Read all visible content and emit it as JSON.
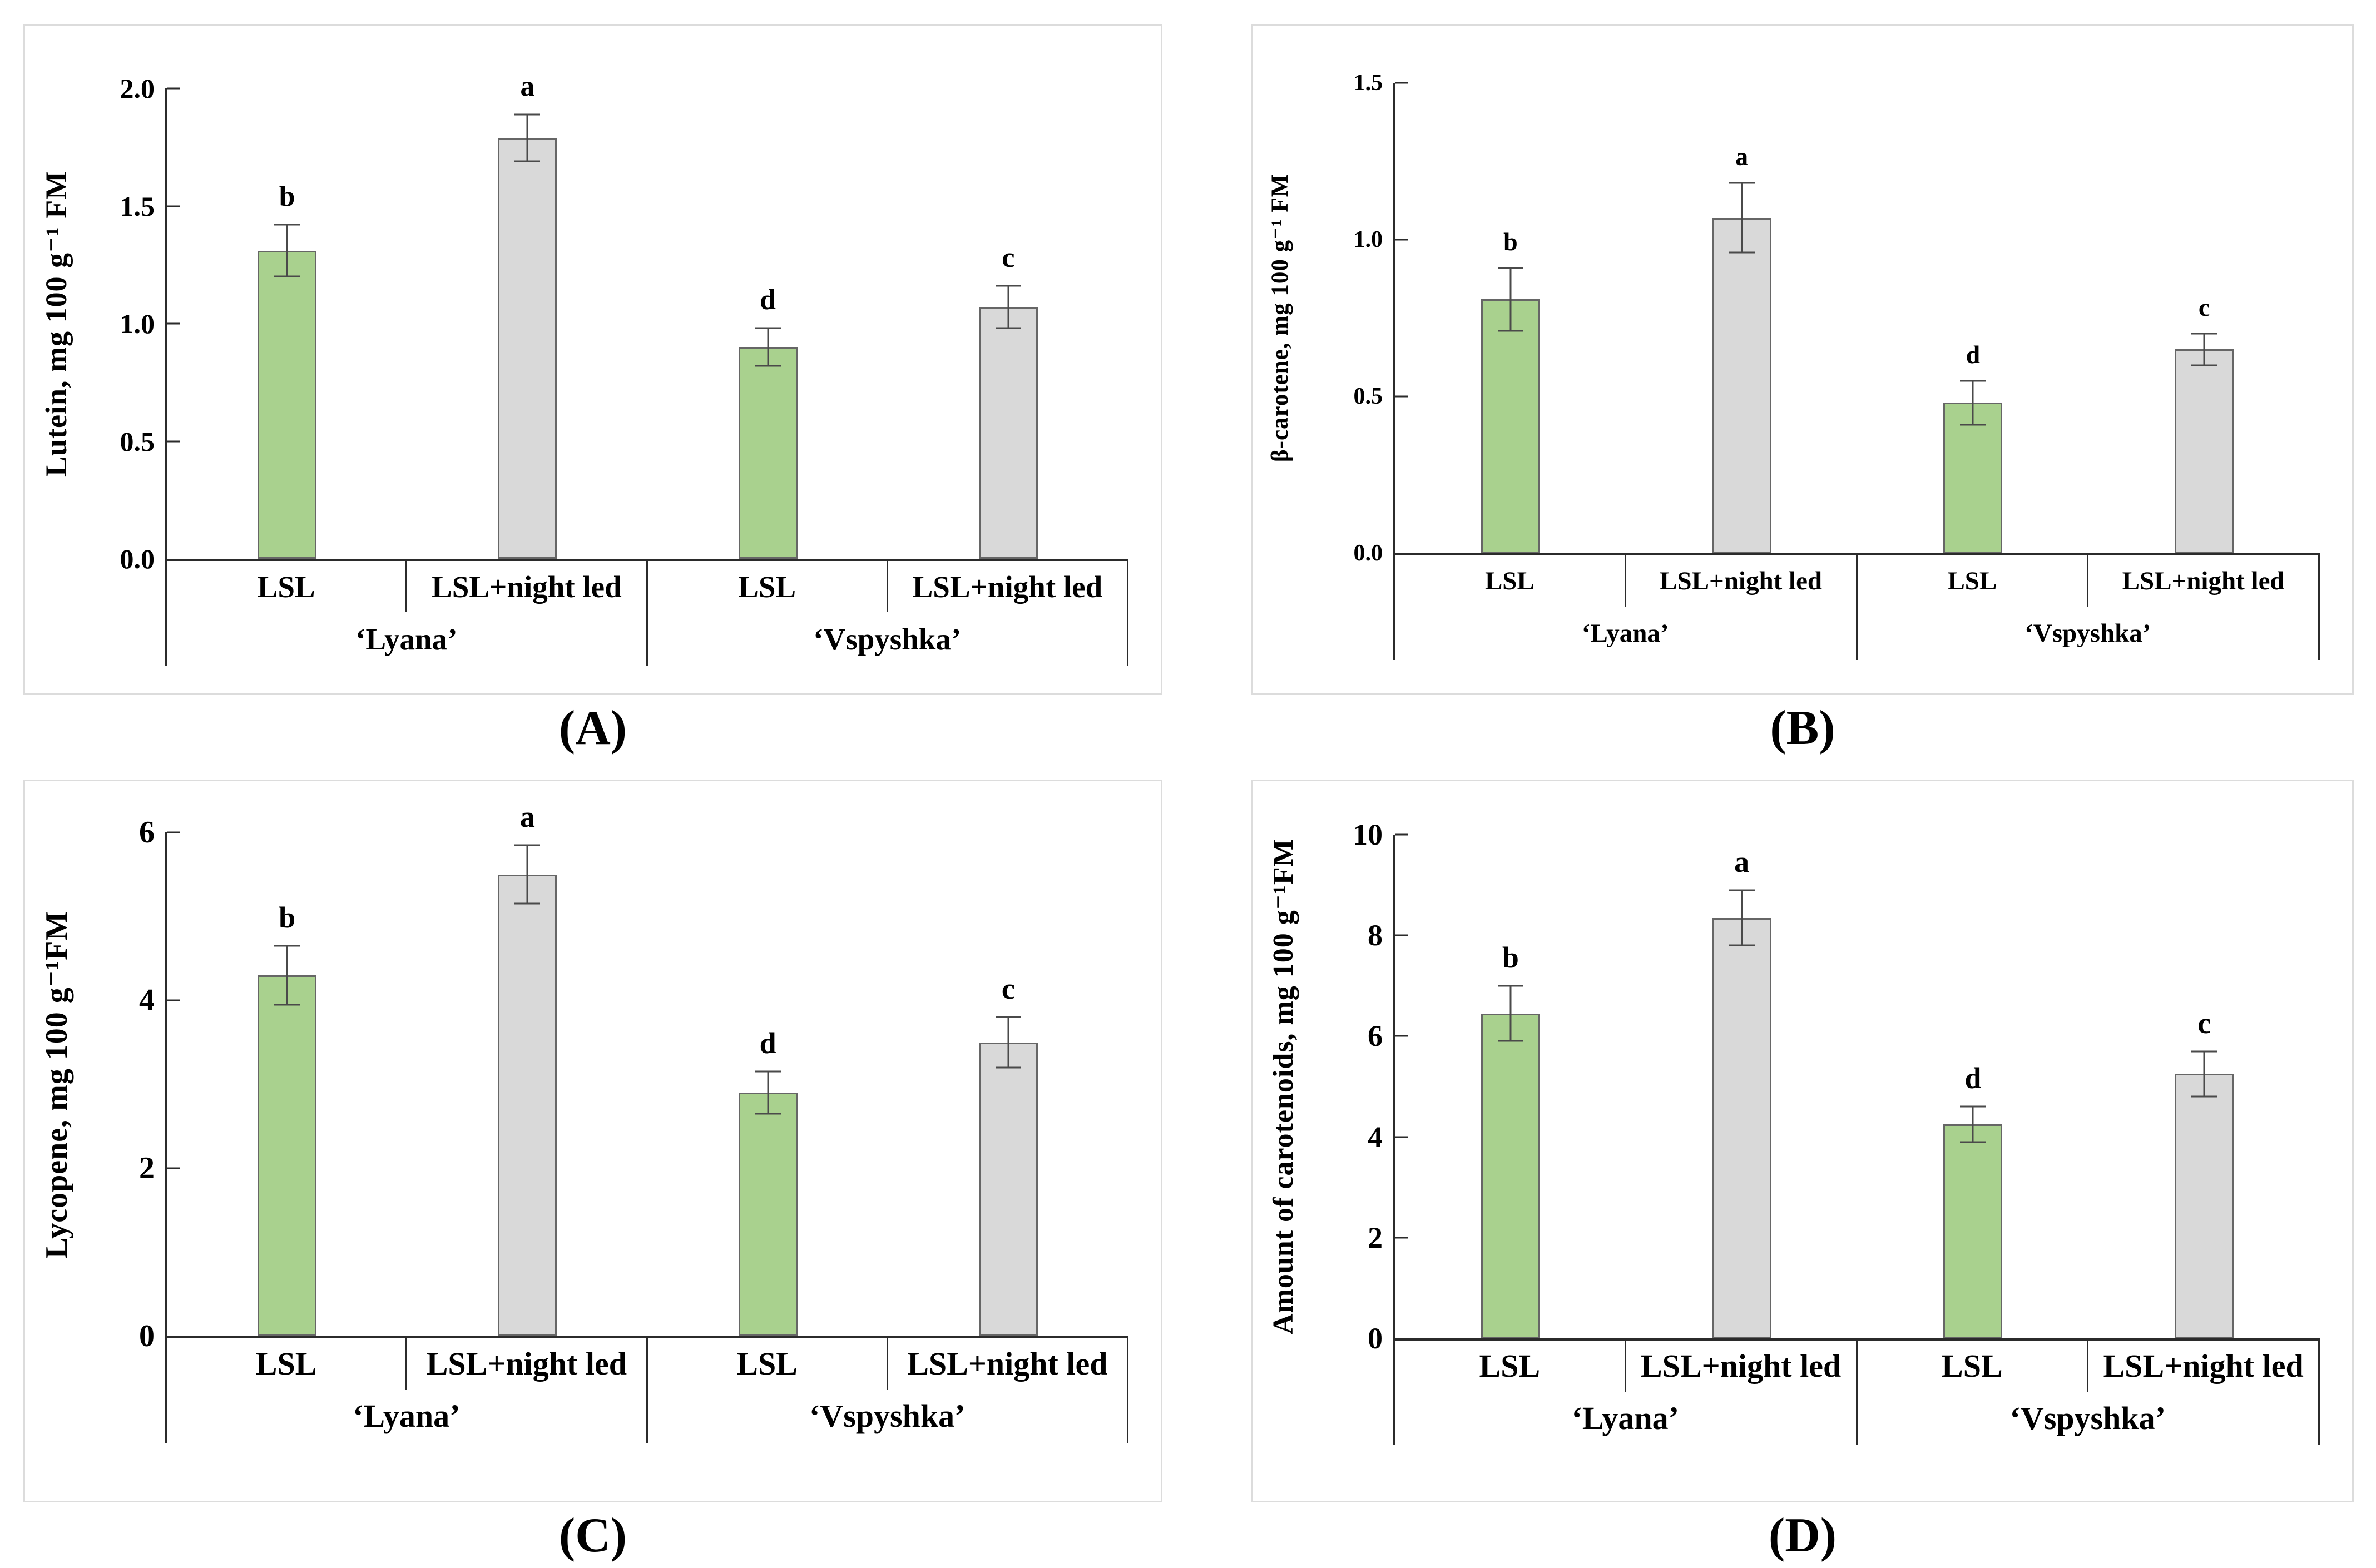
{
  "page": {
    "background": "#ffffff"
  },
  "colors": {
    "green_fill": "#a9d18e",
    "gray_fill": "#d9d9d9",
    "bar_border": "#666666",
    "error_bar": "#4a4a4a",
    "axis": "#2b2b2b",
    "panel_border": "#dcdcdc",
    "text": "#000000"
  },
  "chart_data": [
    {
      "id": "A",
      "type": "bar",
      "caption": "(A)",
      "ylabel": "Lutein, mg 100 g⁻¹ FM",
      "ylim": [
        0,
        2
      ],
      "grid": false,
      "yticks": [
        {
          "v": 0,
          "label": "0.0"
        },
        {
          "v": 0.5,
          "label": "0.5"
        },
        {
          "v": 1,
          "label": "1.0"
        },
        {
          "v": 1.5,
          "label": "1.5"
        },
        {
          "v": 2,
          "label": "2.0"
        }
      ],
      "groups": [
        "‘Lyana’",
        "‘Vspyshka’"
      ],
      "treatments": [
        "LSL",
        "LSL+night led",
        "LSL",
        "LSL+night led"
      ],
      "bars": [
        {
          "group": "‘Lyana’",
          "treatment": "LSL",
          "value": 1.31,
          "error": 0.11,
          "letter": "b",
          "fill": "green"
        },
        {
          "group": "‘Lyana’",
          "treatment": "LSL+night led",
          "value": 1.79,
          "error": 0.1,
          "letter": "a",
          "fill": "gray"
        },
        {
          "group": "‘Vspyshka’",
          "treatment": "LSL",
          "value": 0.9,
          "error": 0.08,
          "letter": "d",
          "fill": "green"
        },
        {
          "group": "‘Vspyshka’",
          "treatment": "LSL+night led",
          "value": 1.07,
          "error": 0.09,
          "letter": "c",
          "fill": "gray"
        }
      ]
    },
    {
      "id": "B",
      "type": "bar",
      "caption": "(B)",
      "ylabel": "β-carotene, mg 100 g⁻¹ FM",
      "ylim": [
        0,
        1.5
      ],
      "grid": false,
      "yticks": [
        {
          "v": 0,
          "label": "0.0"
        },
        {
          "v": 0.5,
          "label": "0.5"
        },
        {
          "v": 1,
          "label": "1.0"
        },
        {
          "v": 1.5,
          "label": "1.5"
        }
      ],
      "groups": [
        "‘Lyana’",
        "‘Vspyshka’"
      ],
      "treatments": [
        "LSL",
        "LSL+night led",
        "LSL",
        "LSL+night led"
      ],
      "bars": [
        {
          "group": "‘Lyana’",
          "treatment": "LSL",
          "value": 0.81,
          "error": 0.1,
          "letter": "b",
          "fill": "green"
        },
        {
          "group": "‘Lyana’",
          "treatment": "LSL+night led",
          "value": 1.07,
          "error": 0.11,
          "letter": "a",
          "fill": "gray"
        },
        {
          "group": "‘Vspyshka’",
          "treatment": "LSL",
          "value": 0.48,
          "error": 0.07,
          "letter": "d",
          "fill": "green"
        },
        {
          "group": "‘Vspyshka’",
          "treatment": "LSL+night led",
          "value": 0.65,
          "error": 0.05,
          "letter": "c",
          "fill": "gray"
        }
      ]
    },
    {
      "id": "C",
      "type": "bar",
      "caption": "(C)",
      "ylabel": "Lycopene, mg 100 g⁻¹FM",
      "ylim": [
        0,
        6
      ],
      "grid": false,
      "yticks": [
        {
          "v": 0,
          "label": "0"
        },
        {
          "v": 2,
          "label": "2"
        },
        {
          "v": 4,
          "label": "4"
        },
        {
          "v": 6,
          "label": "6"
        }
      ],
      "groups": [
        "‘Lyana’",
        "‘Vspyshka’"
      ],
      "treatments": [
        "LSL",
        "LSL+night led",
        "LSL",
        "LSL+night led"
      ],
      "bars": [
        {
          "group": "‘Lyana’",
          "treatment": "LSL",
          "value": 4.3,
          "error": 0.35,
          "letter": "b",
          "fill": "green"
        },
        {
          "group": "‘Lyana’",
          "treatment": "LSL+night led",
          "value": 5.5,
          "error": 0.35,
          "letter": "a",
          "fill": "gray"
        },
        {
          "group": "‘Vspyshka’",
          "treatment": "LSL",
          "value": 2.9,
          "error": 0.25,
          "letter": "d",
          "fill": "green"
        },
        {
          "group": "‘Vspyshka’",
          "treatment": "LSL+night led",
          "value": 3.5,
          "error": 0.3,
          "letter": "c",
          "fill": "gray"
        }
      ]
    },
    {
      "id": "D",
      "type": "bar",
      "caption": "(D)",
      "ylabel": "Amount of carotenoids, mg 100 g⁻¹FM",
      "ylim": [
        0,
        10
      ],
      "grid": false,
      "yticks": [
        {
          "v": 0,
          "label": "0"
        },
        {
          "v": 2,
          "label": "2"
        },
        {
          "v": 4,
          "label": "4"
        },
        {
          "v": 6,
          "label": "6"
        },
        {
          "v": 8,
          "label": "8"
        },
        {
          "v": 10,
          "label": "10"
        }
      ],
      "groups": [
        "‘Lyana’",
        "‘Vspyshka’"
      ],
      "treatments": [
        "LSL",
        "LSL+night led",
        "LSL",
        "LSL+night led"
      ],
      "bars": [
        {
          "group": "‘Lyana’",
          "treatment": "LSL",
          "value": 6.45,
          "error": 0.55,
          "letter": "b",
          "fill": "green"
        },
        {
          "group": "‘Lyana’",
          "treatment": "LSL+night led",
          "value": 8.35,
          "error": 0.55,
          "letter": "a",
          "fill": "gray"
        },
        {
          "group": "‘Vspyshka’",
          "treatment": "LSL",
          "value": 4.25,
          "error": 0.35,
          "letter": "d",
          "fill": "green"
        },
        {
          "group": "‘Vspyshka’",
          "treatment": "LSL+night led",
          "value": 5.25,
          "error": 0.45,
          "letter": "c",
          "fill": "gray"
        }
      ]
    }
  ]
}
